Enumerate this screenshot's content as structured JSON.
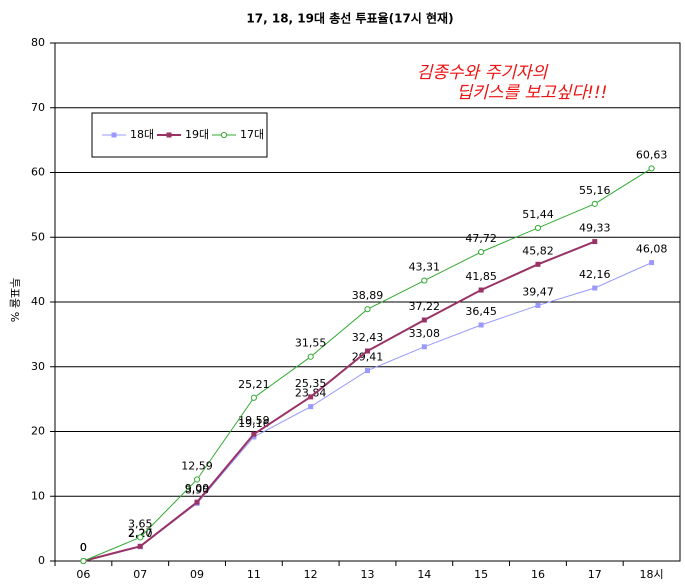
{
  "chart_data": {
    "type": "line",
    "title": "17, 18, 19대 총선 투표율(17시 현재)",
    "ylabel": "투표율 %",
    "annotations": [
      "김종수와 주기자의",
      "딥키스를 보고싶다!!!"
    ],
    "categories": [
      "06",
      "07",
      "09",
      "11",
      "12",
      "13",
      "14",
      "15",
      "16",
      "17",
      "18시"
    ],
    "series": [
      {
        "name": "18대",
        "color": "#9999ff",
        "marker": "square",
        "values": [
          0,
          2.2,
          8.9,
          19.16,
          23.84,
          29.41,
          33.08,
          36.45,
          39.47,
          42.16,
          46.08
        ],
        "value_labels": [
          "0",
          "2,20",
          "8,90",
          "19,16",
          "23,84",
          "29,41",
          "33,08",
          "36,45",
          "39,47",
          "42,16",
          "46,08"
        ]
      },
      {
        "name": "19대",
        "color": "#993366",
        "marker": "square",
        "values": [
          0,
          2.27,
          9.09,
          19.59,
          25.35,
          32.43,
          37.22,
          41.85,
          45.82,
          49.33,
          null
        ],
        "value_labels": [
          "0",
          "2,27",
          "9,09",
          "19,59",
          "25,35",
          "32,43",
          "37,22",
          "41,85",
          "45,82",
          "49,33",
          null
        ]
      },
      {
        "name": "17대",
        "color": "#33aa33",
        "marker": "circle",
        "values": [
          0,
          3.65,
          12.59,
          25.21,
          31.55,
          38.89,
          43.31,
          47.72,
          51.44,
          55.16,
          60.63
        ],
        "value_labels": [
          "0",
          "3,65",
          "12,59",
          "25,21",
          "31,55",
          "38,89",
          "43,31",
          "47,72",
          "51,44",
          "55,16",
          "60,63"
        ]
      }
    ],
    "ylim": [
      0,
      80
    ],
    "yticks": [
      0,
      10,
      20,
      30,
      40,
      50,
      60,
      70,
      80
    ],
    "grid": true,
    "legend": "upper left"
  }
}
